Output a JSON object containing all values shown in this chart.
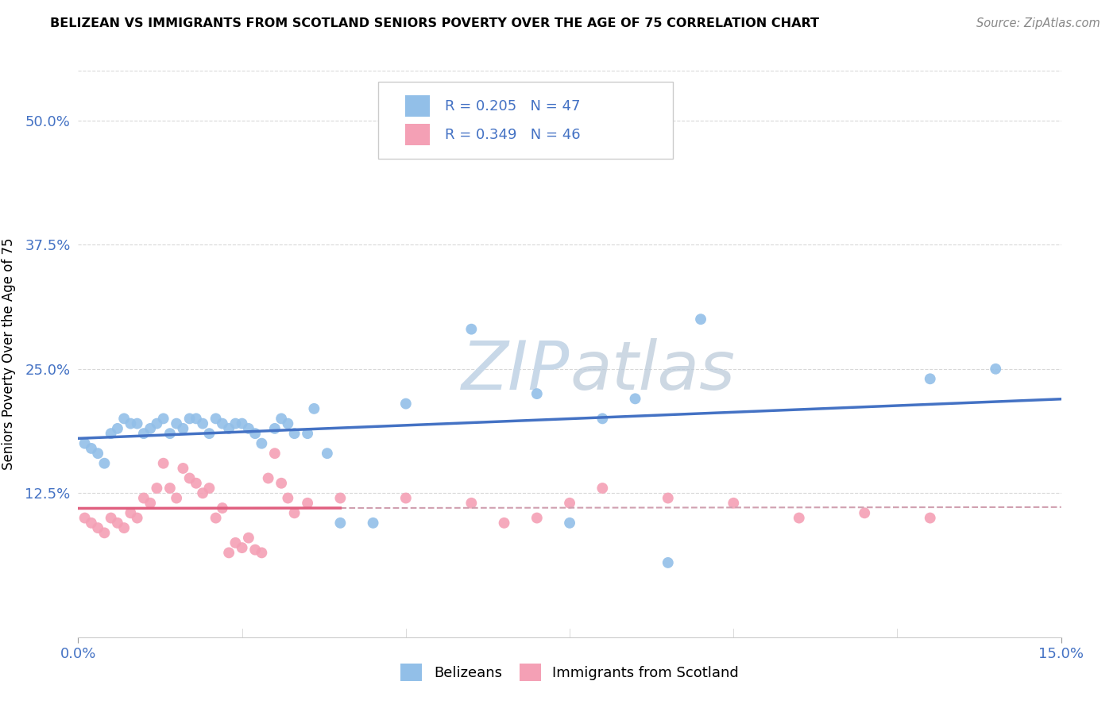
{
  "title": "BELIZEAN VS IMMIGRANTS FROM SCOTLAND SENIORS POVERTY OVER THE AGE OF 75 CORRELATION CHART",
  "source": "Source: ZipAtlas.com",
  "ylabel_label": "Seniors Poverty Over the Age of 75",
  "xlim": [
    0.0,
    0.15
  ],
  "ylim": [
    -0.02,
    0.55
  ],
  "belizean_color": "#92bfe8",
  "scotland_color": "#f4a0b5",
  "trendline_belizean_color": "#4472c4",
  "trendline_scotland_color": "#e06080",
  "trendline_ext_color": "#d0a0b0",
  "background_color": "#ffffff",
  "grid_color": "#d8d8d8",
  "watermark_color": "#c8d8e8",
  "x_ticks": [
    0.0,
    0.15
  ],
  "x_tick_labels": [
    "0.0%",
    "15.0%"
  ],
  "y_ticks": [
    0.125,
    0.25,
    0.375,
    0.5
  ],
  "y_tick_labels": [
    "12.5%",
    "25.0%",
    "37.5%",
    "50.0%"
  ],
  "legend_r1": "R = 0.205",
  "legend_n1": "N = 47",
  "legend_r2": "R = 0.349",
  "legend_n2": "N = 46",
  "bel_x": [
    0.001,
    0.002,
    0.003,
    0.004,
    0.005,
    0.006,
    0.007,
    0.008,
    0.009,
    0.01,
    0.011,
    0.012,
    0.013,
    0.014,
    0.015,
    0.016,
    0.017,
    0.018,
    0.019,
    0.02,
    0.021,
    0.022,
    0.023,
    0.024,
    0.025,
    0.026,
    0.027,
    0.028,
    0.03,
    0.031,
    0.032,
    0.033,
    0.035,
    0.036,
    0.038,
    0.04,
    0.045,
    0.05,
    0.06,
    0.07,
    0.075,
    0.08,
    0.085,
    0.09,
    0.095,
    0.13,
    0.14
  ],
  "bel_y": [
    0.175,
    0.17,
    0.165,
    0.155,
    0.185,
    0.19,
    0.2,
    0.195,
    0.195,
    0.185,
    0.19,
    0.195,
    0.2,
    0.185,
    0.195,
    0.19,
    0.2,
    0.2,
    0.195,
    0.185,
    0.2,
    0.195,
    0.19,
    0.195,
    0.195,
    0.19,
    0.185,
    0.175,
    0.19,
    0.2,
    0.195,
    0.185,
    0.185,
    0.21,
    0.165,
    0.095,
    0.095,
    0.215,
    0.29,
    0.225,
    0.095,
    0.2,
    0.22,
    0.055,
    0.3,
    0.24,
    0.25
  ],
  "sco_x": [
    0.001,
    0.002,
    0.003,
    0.004,
    0.005,
    0.006,
    0.007,
    0.008,
    0.009,
    0.01,
    0.011,
    0.012,
    0.013,
    0.014,
    0.015,
    0.016,
    0.017,
    0.018,
    0.019,
    0.02,
    0.021,
    0.022,
    0.023,
    0.024,
    0.025,
    0.026,
    0.027,
    0.028,
    0.029,
    0.03,
    0.031,
    0.032,
    0.033,
    0.035,
    0.04,
    0.05,
    0.06,
    0.065,
    0.07,
    0.075,
    0.08,
    0.09,
    0.1,
    0.11,
    0.12,
    0.13
  ],
  "sco_y": [
    0.1,
    0.095,
    0.09,
    0.085,
    0.1,
    0.095,
    0.09,
    0.105,
    0.1,
    0.12,
    0.115,
    0.13,
    0.155,
    0.13,
    0.12,
    0.15,
    0.14,
    0.135,
    0.125,
    0.13,
    0.1,
    0.11,
    0.065,
    0.075,
    0.07,
    0.08,
    0.068,
    0.065,
    0.14,
    0.165,
    0.135,
    0.12,
    0.105,
    0.115,
    0.12,
    0.12,
    0.115,
    0.095,
    0.1,
    0.115,
    0.13,
    0.12,
    0.115,
    0.1,
    0.105,
    0.1
  ]
}
